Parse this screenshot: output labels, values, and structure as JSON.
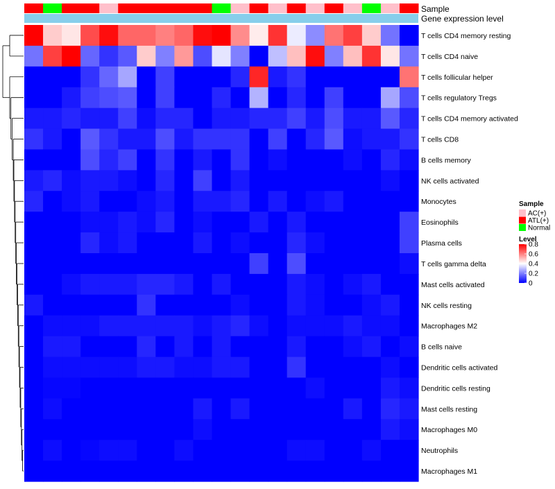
{
  "chart_data": {
    "type": "heatmap",
    "title": "",
    "annotation_rows": [
      {
        "name": "Sample",
        "label": "Sample"
      },
      {
        "name": "Gene expression level",
        "label": "Gene expression level"
      }
    ],
    "samples": [
      "ATL(+)",
      "Normal",
      "ATL(+)",
      "ATL(+)",
      "AC(+)",
      "ATL(+)",
      "ATL(+)",
      "ATL(+)",
      "ATL(+)",
      "ATL(+)",
      "Normal",
      "AC(+)",
      "ATL(+)",
      "AC(+)",
      "ATL(+)",
      "AC(+)",
      "ATL(+)",
      "AC(+)",
      "Normal",
      "AC(+)",
      "ATL(+)"
    ],
    "sample_colors": {
      "AC(+)": "#ffc0cb",
      "ATL(+)": "#ff0000",
      "Normal": "#00ff00"
    },
    "gene_expression_bar_color": "#87ceeb",
    "rows": [
      "T cells CD4 memory resting",
      "T cells CD4 naive",
      "T cells follicular helper",
      "T cells regulatory  Tregs",
      "T cells CD4 memory activated",
      "T cells CD8",
      "B cells memory",
      "NK cells activated",
      "Monocytes",
      "Eosinophils",
      "Plasma cells",
      "T cells gamma delta",
      "Mast cells activated",
      "NK cells resting",
      "Macrophages M2",
      "B cells naive",
      "Dendritic cells activated",
      "Dendritic cells resting",
      "Mast cells resting",
      "Macrophages M0",
      "Neutrophils",
      "Macrophages M1"
    ],
    "values": [
      [
        0.8,
        0.48,
        0.44,
        0.68,
        0.78,
        0.64,
        0.64,
        0.6,
        0.64,
        0.78,
        0.8,
        0.58,
        0.43,
        0.72,
        0.37,
        0.22,
        0.62,
        0.7,
        0.48,
        0.18,
        0.0
      ],
      [
        0.18,
        0.7,
        0.8,
        0.16,
        0.08,
        0.14,
        0.48,
        0.2,
        0.56,
        0.12,
        0.36,
        0.2,
        0.0,
        0.3,
        0.5,
        0.78,
        0.2,
        0.5,
        0.72,
        0.44,
        0.18
      ],
      [
        0.0,
        0.0,
        0.0,
        0.08,
        0.16,
        0.26,
        0.0,
        0.1,
        0.0,
        0.0,
        0.0,
        0.06,
        0.74,
        0.04,
        0.08,
        0.0,
        0.0,
        0.0,
        0.0,
        0.0,
        0.62
      ],
      [
        0.0,
        0.0,
        0.04,
        0.1,
        0.12,
        0.14,
        0.0,
        0.1,
        0.0,
        0.0,
        0.06,
        0.0,
        0.28,
        0.0,
        0.06,
        0.0,
        0.1,
        0.0,
        0.0,
        0.26,
        0.12
      ],
      [
        0.04,
        0.04,
        0.06,
        0.04,
        0.04,
        0.1,
        0.02,
        0.06,
        0.06,
        0.0,
        0.04,
        0.04,
        0.06,
        0.06,
        0.1,
        0.04,
        0.12,
        0.04,
        0.04,
        0.14,
        0.06
      ],
      [
        0.08,
        0.04,
        0.0,
        0.14,
        0.08,
        0.04,
        0.04,
        0.12,
        0.04,
        0.08,
        0.08,
        0.08,
        0.0,
        0.1,
        0.0,
        0.06,
        0.14,
        0.02,
        0.04,
        0.04,
        0.08
      ],
      [
        0.0,
        0.0,
        0.0,
        0.12,
        0.06,
        0.1,
        0.0,
        0.08,
        0.0,
        0.04,
        0.0,
        0.08,
        0.0,
        0.02,
        0.0,
        0.0,
        0.0,
        0.02,
        0.0,
        0.06,
        0.02
      ],
      [
        0.04,
        0.06,
        0.02,
        0.04,
        0.04,
        0.02,
        0.0,
        0.06,
        0.0,
        0.1,
        0.0,
        0.04,
        0.0,
        0.0,
        0.0,
        0.0,
        0.0,
        0.0,
        0.0,
        0.02,
        0.0
      ],
      [
        0.06,
        0.0,
        0.02,
        0.04,
        0.0,
        0.0,
        0.02,
        0.04,
        0.0,
        0.04,
        0.04,
        0.06,
        0.0,
        0.04,
        0.0,
        0.02,
        0.04,
        0.0,
        0.0,
        0.0,
        0.0
      ],
      [
        0.0,
        0.0,
        0.0,
        0.02,
        0.02,
        0.04,
        0.02,
        0.06,
        0.0,
        0.02,
        0.0,
        0.0,
        0.04,
        0.0,
        0.04,
        0.0,
        0.0,
        0.0,
        0.0,
        0.0,
        0.1
      ],
      [
        0.0,
        0.0,
        0.0,
        0.06,
        0.02,
        0.04,
        0.0,
        0.0,
        0.0,
        0.04,
        0.0,
        0.02,
        0.0,
        0.0,
        0.06,
        0.02,
        0.0,
        0.0,
        0.0,
        0.0,
        0.1
      ],
      [
        0.0,
        0.0,
        0.0,
        0.0,
        0.0,
        0.0,
        0.0,
        0.0,
        0.0,
        0.0,
        0.0,
        0.0,
        0.1,
        0.0,
        0.12,
        0.0,
        0.0,
        0.0,
        0.0,
        0.0,
        0.02
      ],
      [
        0.0,
        0.0,
        0.02,
        0.04,
        0.04,
        0.04,
        0.06,
        0.06,
        0.04,
        0.0,
        0.04,
        0.0,
        0.0,
        0.0,
        0.04,
        0.02,
        0.0,
        0.02,
        0.04,
        0.0,
        0.0
      ],
      [
        0.04,
        0.0,
        0.0,
        0.0,
        0.0,
        0.0,
        0.08,
        0.0,
        0.0,
        0.0,
        0.0,
        0.02,
        0.0,
        0.0,
        0.04,
        0.02,
        0.0,
        0.0,
        0.02,
        0.04,
        0.0
      ],
      [
        0.0,
        0.02,
        0.02,
        0.02,
        0.04,
        0.04,
        0.04,
        0.04,
        0.04,
        0.02,
        0.04,
        0.06,
        0.02,
        0.0,
        0.02,
        0.02,
        0.02,
        0.04,
        0.02,
        0.02,
        0.0
      ],
      [
        0.0,
        0.04,
        0.04,
        0.0,
        0.0,
        0.0,
        0.06,
        0.0,
        0.04,
        0.0,
        0.04,
        0.0,
        0.0,
        0.0,
        0.04,
        0.0,
        0.0,
        0.02,
        0.04,
        0.0,
        0.02
      ],
      [
        0.0,
        0.02,
        0.02,
        0.02,
        0.02,
        0.02,
        0.04,
        0.04,
        0.02,
        0.02,
        0.04,
        0.04,
        0.0,
        0.0,
        0.08,
        0.0,
        0.0,
        0.0,
        0.0,
        0.02,
        0.0
      ],
      [
        0.0,
        0.01,
        0.01,
        0.0,
        0.0,
        0.0,
        0.0,
        0.0,
        0.0,
        0.0,
        0.0,
        0.0,
        0.0,
        0.0,
        0.0,
        0.02,
        0.0,
        0.0,
        0.0,
        0.04,
        0.02
      ],
      [
        0.0,
        0.02,
        0.0,
        0.0,
        0.0,
        0.0,
        0.0,
        0.0,
        0.0,
        0.04,
        0.0,
        0.04,
        0.0,
        0.0,
        0.0,
        0.0,
        0.0,
        0.04,
        0.0,
        0.06,
        0.04
      ],
      [
        0.0,
        0.0,
        0.0,
        0.0,
        0.0,
        0.0,
        0.0,
        0.0,
        0.0,
        0.02,
        0.0,
        0.0,
        0.0,
        0.0,
        0.0,
        0.0,
        0.0,
        0.0,
        0.0,
        0.04,
        0.02
      ],
      [
        0.0,
        0.02,
        0.0,
        0.01,
        0.02,
        0.02,
        0.0,
        0.0,
        0.02,
        0.0,
        0.0,
        0.0,
        0.0,
        0.0,
        0.02,
        0.02,
        0.0,
        0.0,
        0.02,
        0.0,
        0.0
      ],
      [
        0.0,
        0.0,
        0.0,
        0.0,
        0.0,
        0.0,
        0.0,
        0.0,
        0.0,
        0.0,
        0.0,
        0.0,
        0.0,
        0.0,
        0.0,
        0.0,
        0.0,
        0.0,
        0.0,
        0.0,
        0.0
      ]
    ],
    "color_scale": {
      "title": "Level",
      "stops": [
        {
          "value": 0,
          "color": "#0000ff"
        },
        {
          "value": 0.4,
          "color": "#ffffff"
        },
        {
          "value": 0.8,
          "color": "#ff0000"
        }
      ],
      "ticks": [
        "0.8",
        "0.6",
        "0.4",
        "0.2",
        "0"
      ]
    },
    "legend": {
      "sample_title": "Sample",
      "sample_entries": [
        "AC(+)",
        "ATL(+)",
        "Normal"
      ],
      "level_title": "Level"
    }
  }
}
